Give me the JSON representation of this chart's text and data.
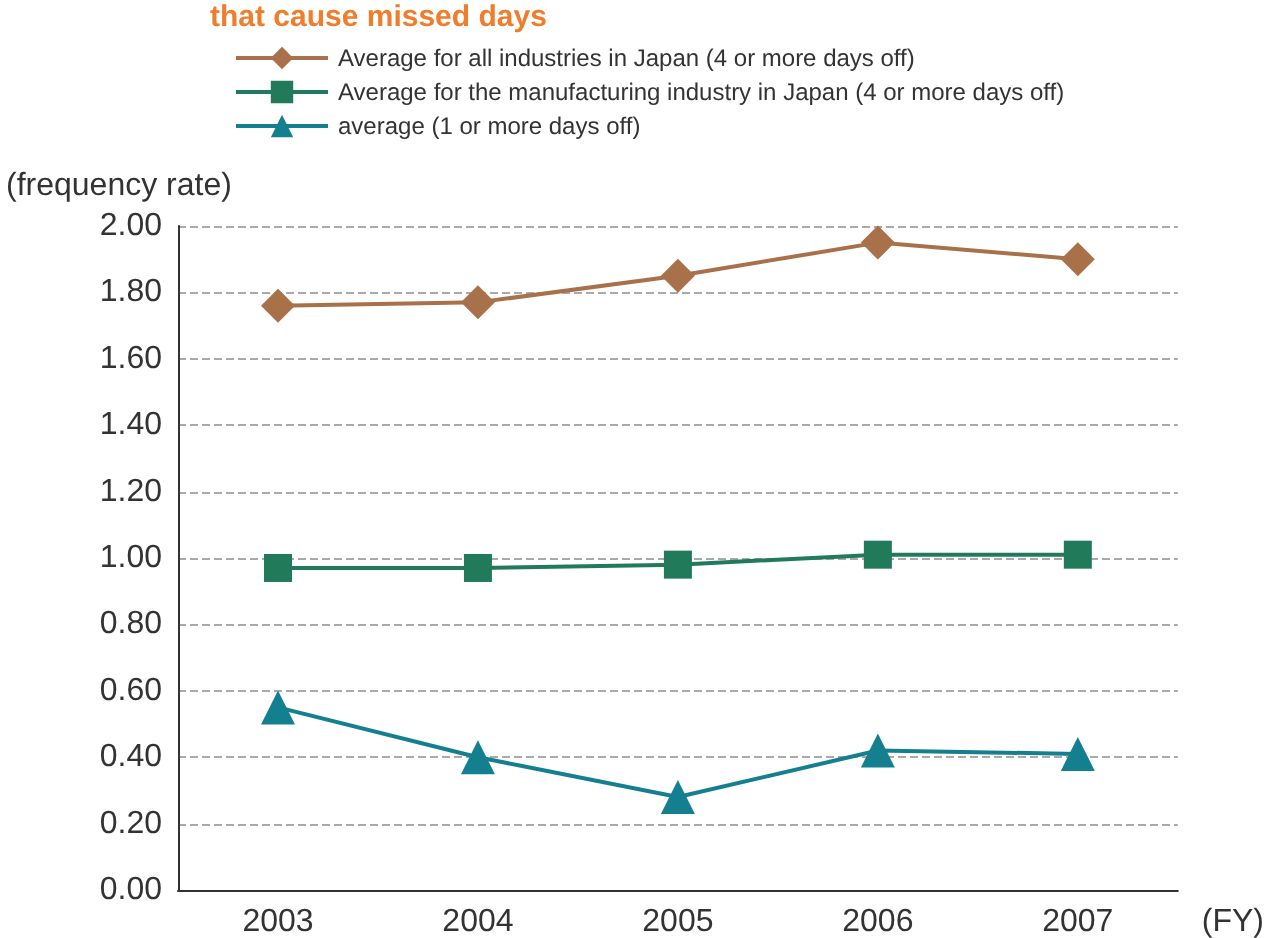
{
  "chart_data": {
    "type": "line",
    "title": "that cause missed days",
    "ylabel": "(frequency rate)",
    "xlabel": "(FY)",
    "categories": [
      "2003",
      "2004",
      "2005",
      "2006",
      "2007"
    ],
    "series": [
      {
        "name": "Average for all industries in Japan (4 or more days off)",
        "color": "#a8714a",
        "marker": "diamond",
        "values": [
          1.76,
          1.77,
          1.85,
          1.95,
          1.9
        ]
      },
      {
        "name": "Average for the manufacturing industry in Japan (4 or more days off)",
        "color": "#217a59",
        "marker": "square",
        "values": [
          0.97,
          0.97,
          0.98,
          1.01,
          1.01
        ]
      },
      {
        "name": "average (1 or more days off)",
        "color": "#14808f",
        "marker": "triangle",
        "values": [
          0.55,
          0.4,
          0.28,
          0.42,
          0.41
        ]
      }
    ],
    "ylim": [
      0,
      2
    ],
    "yticks": [
      {
        "value": 0,
        "label": "0.00"
      },
      {
        "value": 0.2,
        "label": "0.20"
      },
      {
        "value": 0.4,
        "label": "0.40"
      },
      {
        "value": 0.6,
        "label": "0.60"
      },
      {
        "value": 0.8,
        "label": "0.80"
      },
      {
        "value": 1.0,
        "label": "1.00"
      },
      {
        "value": 1.2,
        "label": "1.20"
      },
      {
        "value": 1.4,
        "label": "1.40"
      },
      {
        "value": 1.6,
        "label": "1.60"
      },
      {
        "value": 1.8,
        "label": "1.80"
      },
      {
        "value": 2.0,
        "label": "2.00"
      }
    ],
    "grid": "y",
    "legend": "top",
    "line_style": "solid"
  }
}
